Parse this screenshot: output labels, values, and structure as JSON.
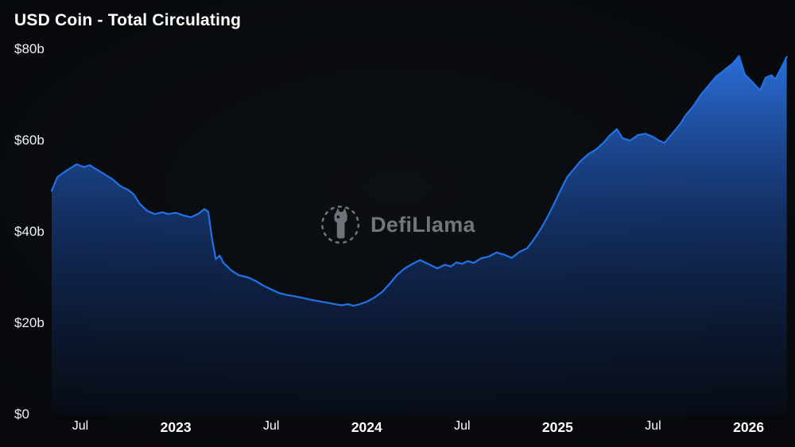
{
  "header": {
    "title": "USD Coin - Total Circulating"
  },
  "watermark": {
    "brand": "DefiLlama",
    "icon": "defillama-llama-icon"
  },
  "colors": {
    "background": "#07090c",
    "title_text": "#ffffff",
    "axis_text": "#eef0f2",
    "watermark_text": "#85888e",
    "line": "#2172E5"
  },
  "chart_data": {
    "type": "area",
    "title": "USD Coin - Total Circulating",
    "xlabel": "",
    "ylabel": "",
    "grid": false,
    "legend": "none",
    "xlim": [
      2022.35,
      2026.21
    ],
    "ylim": [
      0,
      80
    ],
    "unit": "USD billions",
    "y_ticks": [
      {
        "label": "$80b",
        "value": 80
      },
      {
        "label": "$60b",
        "value": 60
      },
      {
        "label": "$40b",
        "value": 40
      },
      {
        "label": "$20b",
        "value": 20
      },
      {
        "label": "$0",
        "value": 0
      }
    ],
    "x_ticks": [
      {
        "label": "Jul",
        "value": 2022.5,
        "year": false
      },
      {
        "label": "2023",
        "value": 2023.0,
        "year": true
      },
      {
        "label": "Jul",
        "value": 2023.5,
        "year": false
      },
      {
        "label": "2024",
        "value": 2024.0,
        "year": true
      },
      {
        "label": "Jul",
        "value": 2024.5,
        "year": false
      },
      {
        "label": "2025",
        "value": 2025.0,
        "year": true
      },
      {
        "label": "Jul",
        "value": 2025.5,
        "year": false
      },
      {
        "label": "2026",
        "value": 2026.0,
        "year": true
      }
    ],
    "line_color": "#2172E5",
    "fill_gradient": [
      "rgba(45,115,227,0.95)",
      "rgba(24,66,142,0.65)",
      "rgba(8,16,36,0.40)"
    ],
    "series": [
      {
        "name": "USD Coin Total Circulating ($b)",
        "points": [
          [
            2022.35,
            49.0
          ],
          [
            2022.38,
            52.0
          ],
          [
            2022.42,
            53.2
          ],
          [
            2022.45,
            54.0
          ],
          [
            2022.48,
            54.8
          ],
          [
            2022.52,
            54.2
          ],
          [
            2022.55,
            54.6
          ],
          [
            2022.58,
            53.8
          ],
          [
            2022.62,
            52.8
          ],
          [
            2022.67,
            51.5
          ],
          [
            2022.71,
            50.0
          ],
          [
            2022.75,
            49.2
          ],
          [
            2022.78,
            48.2
          ],
          [
            2022.81,
            46.2
          ],
          [
            2022.85,
            44.6
          ],
          [
            2022.89,
            43.9
          ],
          [
            2022.93,
            44.3
          ],
          [
            2022.96,
            43.9
          ],
          [
            2023.0,
            44.2
          ],
          [
            2023.04,
            43.6
          ],
          [
            2023.08,
            43.2
          ],
          [
            2023.12,
            44.0
          ],
          [
            2023.15,
            45.0
          ],
          [
            2023.17,
            44.4
          ],
          [
            2023.19,
            38.5
          ],
          [
            2023.21,
            34.0
          ],
          [
            2023.23,
            34.8
          ],
          [
            2023.25,
            33.2
          ],
          [
            2023.29,
            31.6
          ],
          [
            2023.33,
            30.5
          ],
          [
            2023.38,
            30.0
          ],
          [
            2023.42,
            29.2
          ],
          [
            2023.46,
            28.2
          ],
          [
            2023.5,
            27.4
          ],
          [
            2023.54,
            26.6
          ],
          [
            2023.58,
            26.2
          ],
          [
            2023.62,
            25.9
          ],
          [
            2023.67,
            25.5
          ],
          [
            2023.71,
            25.1
          ],
          [
            2023.75,
            24.8
          ],
          [
            2023.79,
            24.5
          ],
          [
            2023.83,
            24.2
          ],
          [
            2023.87,
            23.9
          ],
          [
            2023.9,
            24.2
          ],
          [
            2023.93,
            23.8
          ],
          [
            2023.96,
            24.1
          ],
          [
            2024.0,
            24.7
          ],
          [
            2024.04,
            25.6
          ],
          [
            2024.08,
            26.8
          ],
          [
            2024.12,
            28.6
          ],
          [
            2024.16,
            30.6
          ],
          [
            2024.2,
            32.0
          ],
          [
            2024.24,
            33.0
          ],
          [
            2024.28,
            33.8
          ],
          [
            2024.33,
            32.8
          ],
          [
            2024.37,
            32.0
          ],
          [
            2024.41,
            32.8
          ],
          [
            2024.44,
            32.4
          ],
          [
            2024.47,
            33.3
          ],
          [
            2024.5,
            33.0
          ],
          [
            2024.53,
            33.6
          ],
          [
            2024.56,
            33.2
          ],
          [
            2024.6,
            34.2
          ],
          [
            2024.64,
            34.6
          ],
          [
            2024.68,
            35.5
          ],
          [
            2024.72,
            35.0
          ],
          [
            2024.76,
            34.3
          ],
          [
            2024.8,
            35.6
          ],
          [
            2024.84,
            36.4
          ],
          [
            2024.87,
            38.0
          ],
          [
            2024.91,
            40.5
          ],
          [
            2024.95,
            43.5
          ],
          [
            2024.98,
            46.0
          ],
          [
            2025.02,
            49.5
          ],
          [
            2025.05,
            52.0
          ],
          [
            2025.08,
            53.5
          ],
          [
            2025.12,
            55.5
          ],
          [
            2025.16,
            57.0
          ],
          [
            2025.2,
            58.0
          ],
          [
            2025.24,
            59.5
          ],
          [
            2025.27,
            61.0
          ],
          [
            2025.31,
            62.5
          ],
          [
            2025.34,
            60.5
          ],
          [
            2025.38,
            60.0
          ],
          [
            2025.42,
            61.2
          ],
          [
            2025.46,
            61.5
          ],
          [
            2025.5,
            60.8
          ],
          [
            2025.53,
            60.0
          ],
          [
            2025.56,
            59.5
          ],
          [
            2025.6,
            61.5
          ],
          [
            2025.64,
            63.5
          ],
          [
            2025.67,
            65.5
          ],
          [
            2025.71,
            67.5
          ],
          [
            2025.75,
            70.0
          ],
          [
            2025.79,
            72.0
          ],
          [
            2025.83,
            74.0
          ],
          [
            2025.86,
            75.0
          ],
          [
            2025.89,
            76.0
          ],
          [
            2025.92,
            77.0
          ],
          [
            2025.95,
            78.5
          ],
          [
            2025.98,
            74.5
          ],
          [
            2026.02,
            72.8
          ],
          [
            2026.06,
            71.0
          ],
          [
            2026.09,
            73.8
          ],
          [
            2026.12,
            74.3
          ],
          [
            2026.14,
            73.4
          ],
          [
            2026.17,
            75.8
          ],
          [
            2026.2,
            78.3
          ]
        ]
      }
    ]
  }
}
